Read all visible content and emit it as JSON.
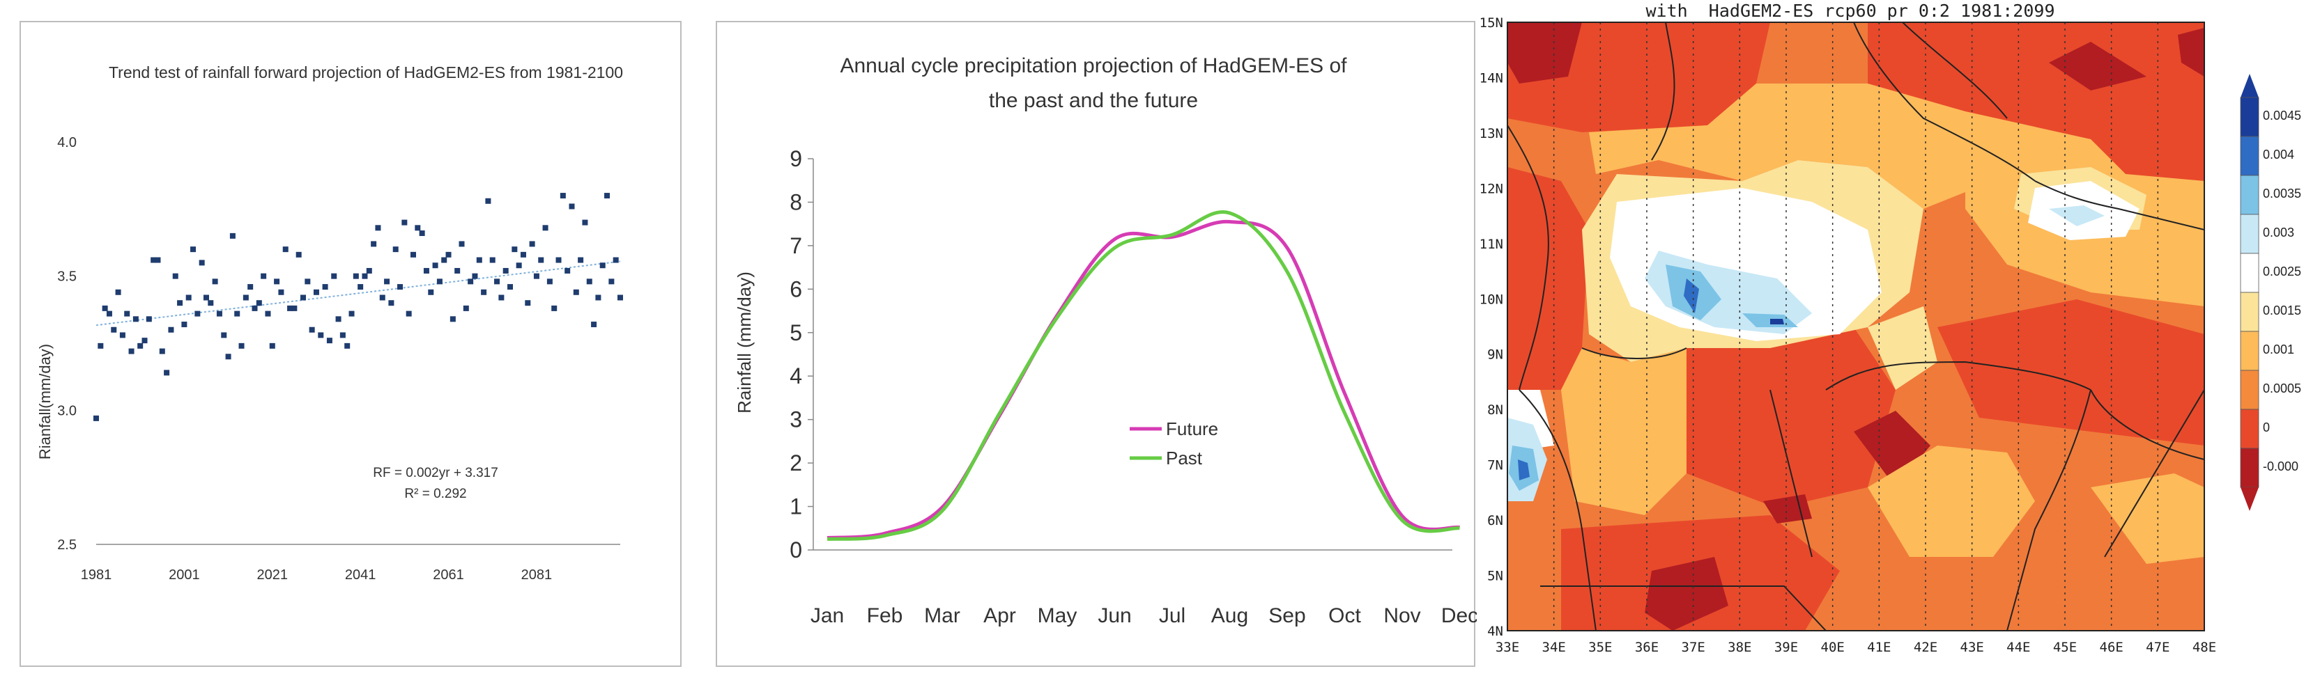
{
  "chart_data": [
    {
      "type": "scatter",
      "title": "Trend test of rainfall  forward projection of HadGEM2-ES from 1981-2100",
      "xlabel": "",
      "ylabel": "Rianfall(mm/day)",
      "xlim": [
        1981,
        2100
      ],
      "ylim": [
        2.5,
        4.0
      ],
      "xticks": [
        "1981",
        "2001",
        "2021",
        "2041",
        "2061",
        "2081"
      ],
      "yticks": [
        "2.5",
        "3.0",
        "3.5",
        "4.0"
      ],
      "equation": "RF = 0.002yr + 3.317",
      "r2": "R² = 0.292",
      "trend": {
        "slope": 0.002,
        "intercept": 3.317
      },
      "x": [
        1981,
        1982,
        1983,
        1984,
        1985,
        1986,
        1987,
        1988,
        1989,
        1990,
        1991,
        1992,
        1993,
        1994,
        1995,
        1996,
        1997,
        1998,
        1999,
        2000,
        2001,
        2002,
        2003,
        2004,
        2005,
        2006,
        2007,
        2008,
        2009,
        2010,
        2011,
        2012,
        2013,
        2014,
        2015,
        2016,
        2017,
        2018,
        2019,
        2020,
        2021,
        2022,
        2023,
        2024,
        2025,
        2026,
        2027,
        2028,
        2029,
        2030,
        2031,
        2032,
        2033,
        2034,
        2035,
        2036,
        2037,
        2038,
        2039,
        2040,
        2041,
        2042,
        2043,
        2044,
        2045,
        2046,
        2047,
        2048,
        2049,
        2050,
        2051,
        2052,
        2053,
        2054,
        2055,
        2056,
        2057,
        2058,
        2059,
        2060,
        2061,
        2062,
        2063,
        2064,
        2065,
        2066,
        2067,
        2068,
        2069,
        2070,
        2071,
        2072,
        2073,
        2074,
        2075,
        2076,
        2077,
        2078,
        2079,
        2080,
        2081,
        2082,
        2083,
        2084,
        2085,
        2086,
        2087,
        2088,
        2089,
        2090,
        2091,
        2092,
        2093,
        2094,
        2095,
        2096,
        2097,
        2098,
        2099,
        2100
      ],
      "y": [
        2.97,
        3.24,
        3.38,
        3.36,
        3.3,
        3.44,
        3.28,
        3.36,
        3.22,
        3.34,
        3.24,
        3.26,
        3.34,
        3.56,
        3.56,
        3.22,
        3.14,
        3.3,
        3.5,
        3.4,
        3.32,
        3.42,
        3.6,
        3.36,
        3.55,
        3.42,
        3.4,
        3.48,
        3.36,
        3.28,
        3.2,
        3.65,
        3.36,
        3.24,
        3.42,
        3.46,
        3.38,
        3.4,
        3.5,
        3.36,
        3.24,
        3.48,
        3.44,
        3.6,
        3.38,
        3.38,
        3.58,
        3.42,
        3.48,
        3.3,
        3.44,
        3.28,
        3.46,
        3.26,
        3.5,
        3.34,
        3.28,
        3.24,
        3.36,
        3.5,
        3.46,
        3.5,
        3.52,
        3.62,
        3.68,
        3.42,
        3.48,
        3.4,
        3.6,
        3.46,
        3.7,
        3.36,
        3.58,
        3.68,
        3.66,
        3.52,
        3.44,
        3.54,
        3.48,
        3.56,
        3.58,
        3.34,
        3.52,
        3.62,
        3.38,
        3.48,
        3.5,
        3.56,
        3.44,
        3.78,
        3.56,
        3.48,
        3.42,
        3.52,
        3.46,
        3.6,
        3.54,
        3.58,
        3.4,
        3.62,
        3.5,
        3.56,
        3.68,
        3.48,
        3.38,
        3.56,
        3.8,
        3.52,
        3.76,
        3.44,
        3.56,
        3.7,
        3.48,
        3.32,
        3.42,
        3.54,
        3.8,
        3.48,
        3.56,
        3.42
      ]
    },
    {
      "type": "line",
      "title": "Annual cycle precipitation projection of HadGEM-ES of",
      "title2": "the past and the future",
      "xlabel": "",
      "ylabel": "Rainfall (mm/day)",
      "categories": [
        "Jan",
        "Feb",
        "Mar",
        "Apr",
        "May",
        "Jun",
        "Jul",
        "Aug",
        "Sep",
        "Oct",
        "Nov",
        "Dec"
      ],
      "ylim": [
        0,
        9
      ],
      "yticks": [
        "0",
        "1",
        "2",
        "3",
        "4",
        "5",
        "6",
        "7",
        "8",
        "9"
      ],
      "series": [
        {
          "name": "Future",
          "color": "#d63cb4",
          "values": [
            0.28,
            0.38,
            0.98,
            3.1,
            5.4,
            7.15,
            7.2,
            7.55,
            6.95,
            3.6,
            0.78,
            0.52
          ]
        },
        {
          "name": "Past",
          "color": "#66cc44",
          "values": [
            0.25,
            0.33,
            0.9,
            3.15,
            5.35,
            6.95,
            7.25,
            7.75,
            6.4,
            3.15,
            0.68,
            0.5
          ]
        }
      ]
    },
    {
      "type": "heatmap",
      "title": "with  HadGEM2-ES rcp60 pr 0:2 1981:2099",
      "xlabel": "",
      "ylabel": "",
      "xticks": [
        "33E",
        "34E",
        "35E",
        "36E",
        "37E",
        "38E",
        "39E",
        "40E",
        "41E",
        "42E",
        "43E",
        "44E",
        "45E",
        "46E",
        "47E",
        "48E"
      ],
      "yticks": [
        "4N",
        "5N",
        "6N",
        "7N",
        "8N",
        "9N",
        "10N",
        "11N",
        "12N",
        "13N",
        "14N",
        "15N"
      ],
      "colorbar": {
        "labels": [
          "0.0045",
          "0.004",
          "0.0035",
          "0.003",
          "0.0025",
          "0.0015",
          "0.001",
          "0.0005",
          "0",
          "-0.000"
        ],
        "colors": [
          "#1a3d99",
          "#2f6cc4",
          "#7cc3e6",
          "#c8e8f6",
          "#ffffff",
          "#fbe39a",
          "#fdbb5a",
          "#f48a3c",
          "#e8492b",
          "#b11d21"
        ]
      }
    }
  ]
}
